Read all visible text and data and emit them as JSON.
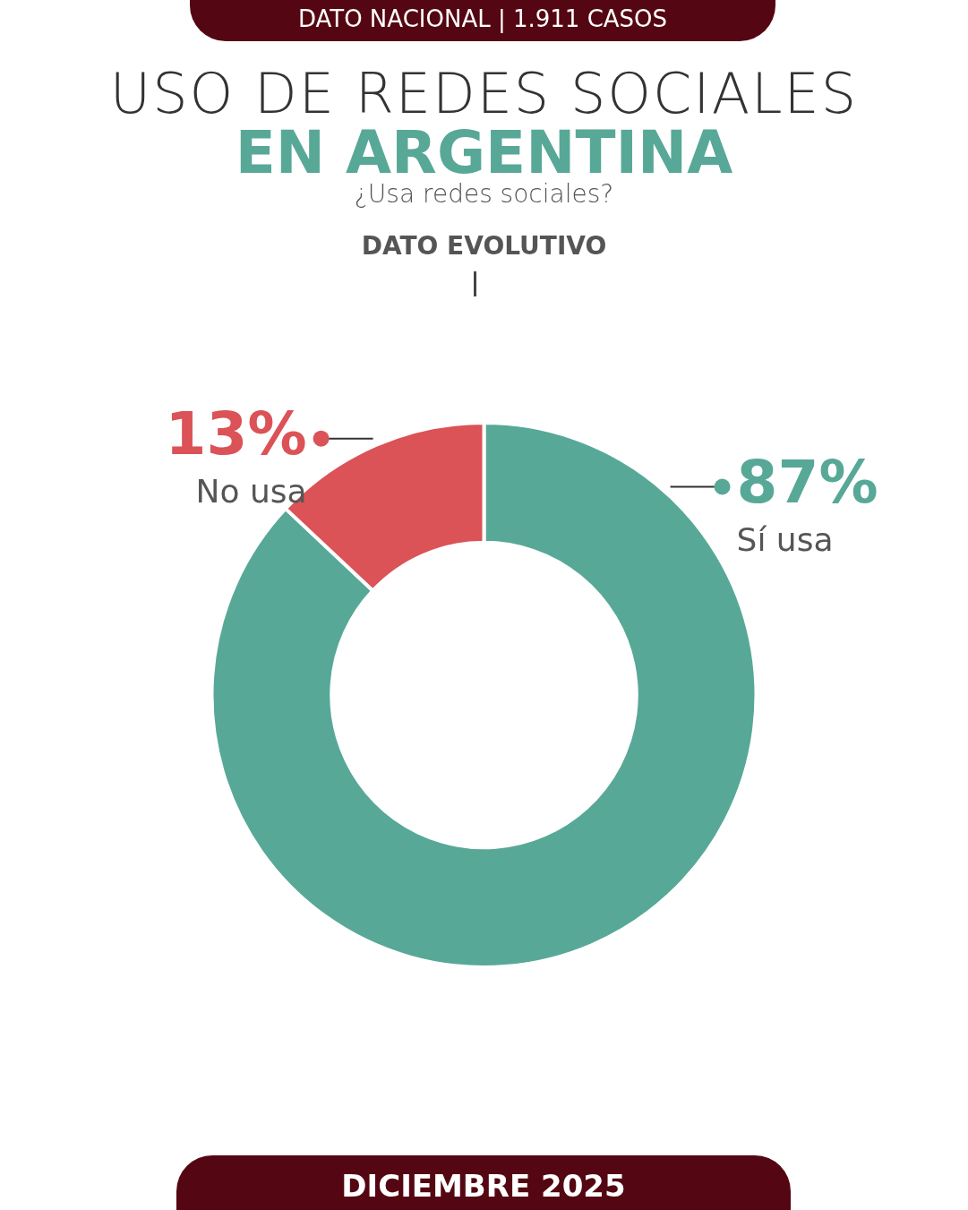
{
  "chart_data": {
    "type": "donut",
    "title": "USO DE REDES SOCIALES\nEN ARGENTINA",
    "annotations": [
      "DATO NACIONAL | 1.911 CASOS",
      "¿Usa redes sociales?",
      "DATO EVOLUTIVO",
      "DICIEMBRE 2025"
    ],
    "categories": [
      "Sí usa",
      "No usa"
    ],
    "values": [
      87,
      13
    ],
    "colors": [
      "#58a897",
      "#db5257"
    ],
    "value_labels": [
      "87%",
      "13%"
    ],
    "legend": "top"
  }
}
